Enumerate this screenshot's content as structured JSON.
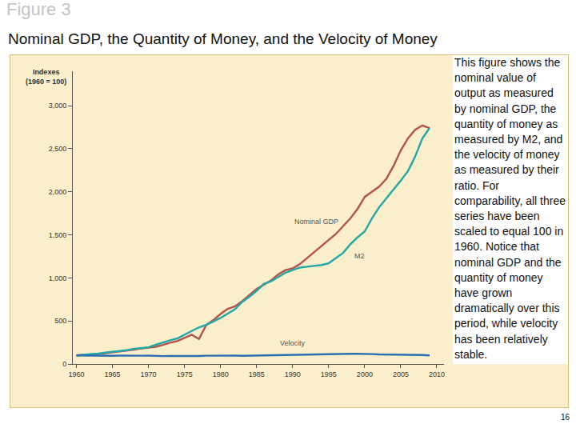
{
  "figure_label": "Figure 3",
  "heading": "Nominal GDP, the Quantity of Money, and the Velocity of Money",
  "caption": "This figure shows the nominal value of output as measured by nominal GDP, the quantity of money as measured by M2, and the velocity of money as measured by their ratio. For comparability, all three series have been scaled to equal 100 in 1960. Notice that nominal GDP and the quantity of money have grown dramatically over this period, while velocity has been relatively stable.",
  "page_number": "16",
  "chart_data": {
    "type": "line",
    "y_label": "Indexes\n(1960 = 100)",
    "x": [
      1960,
      1961,
      1962,
      1963,
      1964,
      1965,
      1966,
      1967,
      1968,
      1969,
      1970,
      1971,
      1972,
      1973,
      1974,
      1975,
      1976,
      1977,
      1978,
      1979,
      1980,
      1981,
      1982,
      1983,
      1984,
      1985,
      1986,
      1987,
      1988,
      1989,
      1990,
      1991,
      1992,
      1993,
      1994,
      1995,
      1996,
      1997,
      1998,
      1999,
      2000,
      2001,
      2002,
      2003,
      2004,
      2005,
      2006,
      2007,
      2008,
      2009
    ],
    "series": [
      {
        "name": "Nominal GDP",
        "color": "#b5534a",
        "values": [
          100,
          104,
          110,
          116,
          124,
          133,
          145,
          152,
          166,
          180,
          188,
          200,
          222,
          248,
          266,
          300,
          340,
          290,
          450,
          510,
          580,
          640,
          670,
          730,
          800,
          870,
          920,
          970,
          1040,
          1090,
          1110,
          1160,
          1230,
          1300,
          1370,
          1440,
          1510,
          1600,
          1690,
          1800,
          1940,
          2000,
          2060,
          2150,
          2300,
          2480,
          2620,
          2720,
          2770,
          2740
        ]
      },
      {
        "name": "M2",
        "color": "#23a7a8",
        "values": [
          100,
          106,
          113,
          122,
          132,
          140,
          147,
          160,
          176,
          183,
          194,
          223,
          253,
          276,
          297,
          337,
          383,
          425,
          455,
          493,
          535,
          585,
          635,
          720,
          780,
          850,
          930,
          960,
          1010,
          1060,
          1090,
          1120,
          1130,
          1140,
          1150,
          1170,
          1230,
          1290,
          1390,
          1470,
          1540,
          1690,
          1820,
          1920,
          2020,
          2130,
          2240,
          2410,
          2620,
          2740
        ]
      },
      {
        "name": "Velocity",
        "color": "#2b6eb2",
        "values": [
          100,
          98,
          97,
          95,
          94,
          95,
          97,
          95,
          94,
          96,
          97,
          93,
          92,
          94,
          93,
          92,
          92,
          93,
          96,
          98,
          100,
          102,
          98,
          95,
          97,
          98,
          96,
          98,
          101,
          102,
          103,
          104,
          107,
          110,
          113,
          116,
          118,
          120,
          119,
          118,
          119,
          115,
          111,
          110,
          111,
          112,
          113,
          110,
          104,
          100
        ]
      }
    ],
    "xlim": [
      1959.5,
      2011
    ],
    "ylim": [
      0,
      3400
    ],
    "xticks": [
      1960,
      1965,
      1970,
      1975,
      1980,
      1985,
      1990,
      1995,
      2000,
      2005,
      2010
    ],
    "yticks": [
      0,
      500,
      {
        "value": 1000,
        "label": "1,000"
      },
      {
        "value": 1500,
        "label": "1,500"
      },
      {
        "value": 2000,
        "label": "2,000"
      },
      {
        "value": 2500,
        "label": "2,500"
      },
      {
        "value": 3000,
        "label": "3,000"
      }
    ],
    "grid": false
  }
}
